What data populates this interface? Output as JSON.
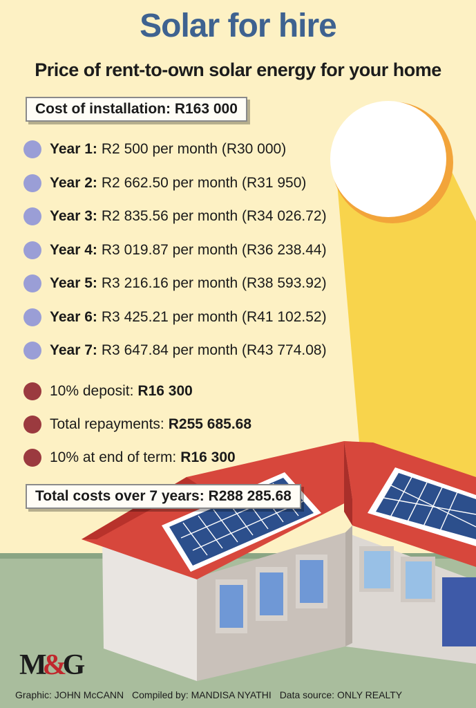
{
  "title": "Solar for hire",
  "subtitle": "Price of rent-to-own solar energy for your home",
  "installation": "Cost of installation: R163 000",
  "years": [
    {
      "label": "Year 1:",
      "text": "R2 500 per month (R30 000)"
    },
    {
      "label": "Year 2:",
      "text": "R2 662.50 per month (R31 950)"
    },
    {
      "label": "Year 3:",
      "text": "R2 835.56 per month (R34 026.72)"
    },
    {
      "label": "Year 4:",
      "text": "R3 019.87 per month (R36 238.44)"
    },
    {
      "label": "Year 5:",
      "text": "R3 216.16 per month (R38 593.92)"
    },
    {
      "label": "Year 6:",
      "text": "R3 425.21 per month (R41 102.52)"
    },
    {
      "label": "Year 7:",
      "text": "R3 647.84 per month (R43 774.08)"
    }
  ],
  "summary": [
    {
      "label": "10% deposit:",
      "value": "R16 300"
    },
    {
      "label": "Total repayments:",
      "value": "R255 685.68"
    },
    {
      "label": "10% at end of term:",
      "value": "R16 300"
    }
  ],
  "total": "Total costs over 7 years: R288 285.68",
  "logo": {
    "left": "M",
    "amp": "&",
    "right": "G"
  },
  "credits": {
    "graphic": "Graphic: JOHN McCANN",
    "compiled": "Compiled by: MANDISA NYATHI",
    "source": "Data source: ONLY REALTY"
  },
  "colors": {
    "background": "#fdf1c4",
    "title": "#3e6290",
    "year_dot": "#9a9ed6",
    "summary_dot": "#9b3a3f",
    "sun_beam": "#f8d44c",
    "roof": "#d7473c",
    "ground": "#a9bd9d"
  },
  "icons": [
    "sun-icon",
    "house-illustration",
    "solar-panel-icon"
  ]
}
